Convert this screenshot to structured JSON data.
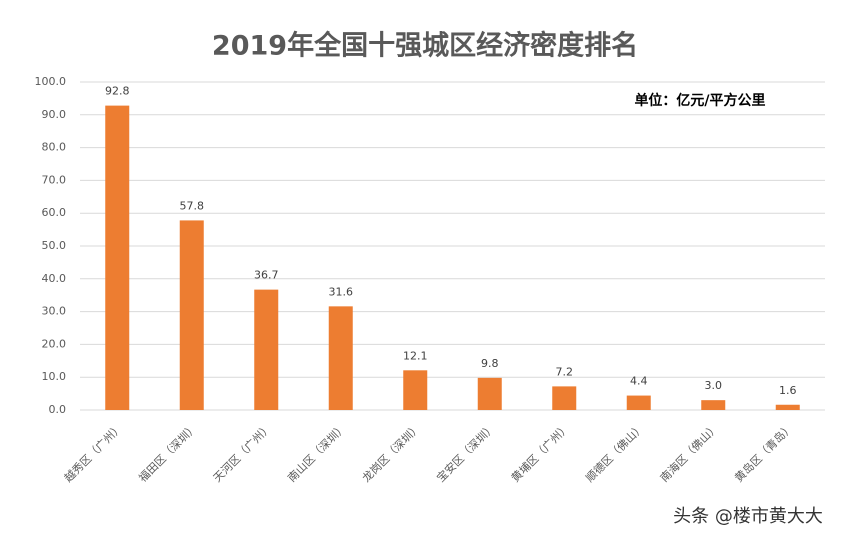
{
  "chart_data": {
    "type": "bar",
    "title": "2019年全国十强城区经济密度排名",
    "annotation": "单位：亿元/平方公里",
    "watermark": "头条 @楼市黄大大",
    "categories": [
      "越秀区（广州）",
      "福田区（深圳）",
      "天河区（广州）",
      "南山区（深圳）",
      "龙岗区（深圳）",
      "宝安区（深圳）",
      "黄埔区（广州）",
      "顺德区（佛山）",
      "南海区（佛山）",
      "黄岛区（青岛）"
    ],
    "values": [
      92.8,
      57.8,
      36.7,
      31.6,
      12.1,
      9.8,
      7.2,
      4.4,
      3.0,
      1.6
    ],
    "value_labels": [
      "92.8",
      "57.8",
      "36.7",
      "31.6",
      "12.1",
      "9.8",
      "7.2",
      "4.4",
      "3.0",
      "1.6"
    ],
    "color": "#ed7d31",
    "ylim": [
      0,
      100
    ],
    "yticks": [
      {
        "value": 0,
        "label": "0.0"
      },
      {
        "value": 10,
        "label": "10.0"
      },
      {
        "value": 20,
        "label": "20.0"
      },
      {
        "value": 30,
        "label": "30.0"
      },
      {
        "value": 40,
        "label": "40.0"
      },
      {
        "value": 50,
        "label": "50.0"
      },
      {
        "value": 60,
        "label": "60.0"
      },
      {
        "value": 70,
        "label": "70.0"
      },
      {
        "value": 80,
        "label": "80.0"
      },
      {
        "value": 90,
        "label": "90.0"
      },
      {
        "value": 100,
        "label": "100.0"
      }
    ],
    "grid": true
  }
}
